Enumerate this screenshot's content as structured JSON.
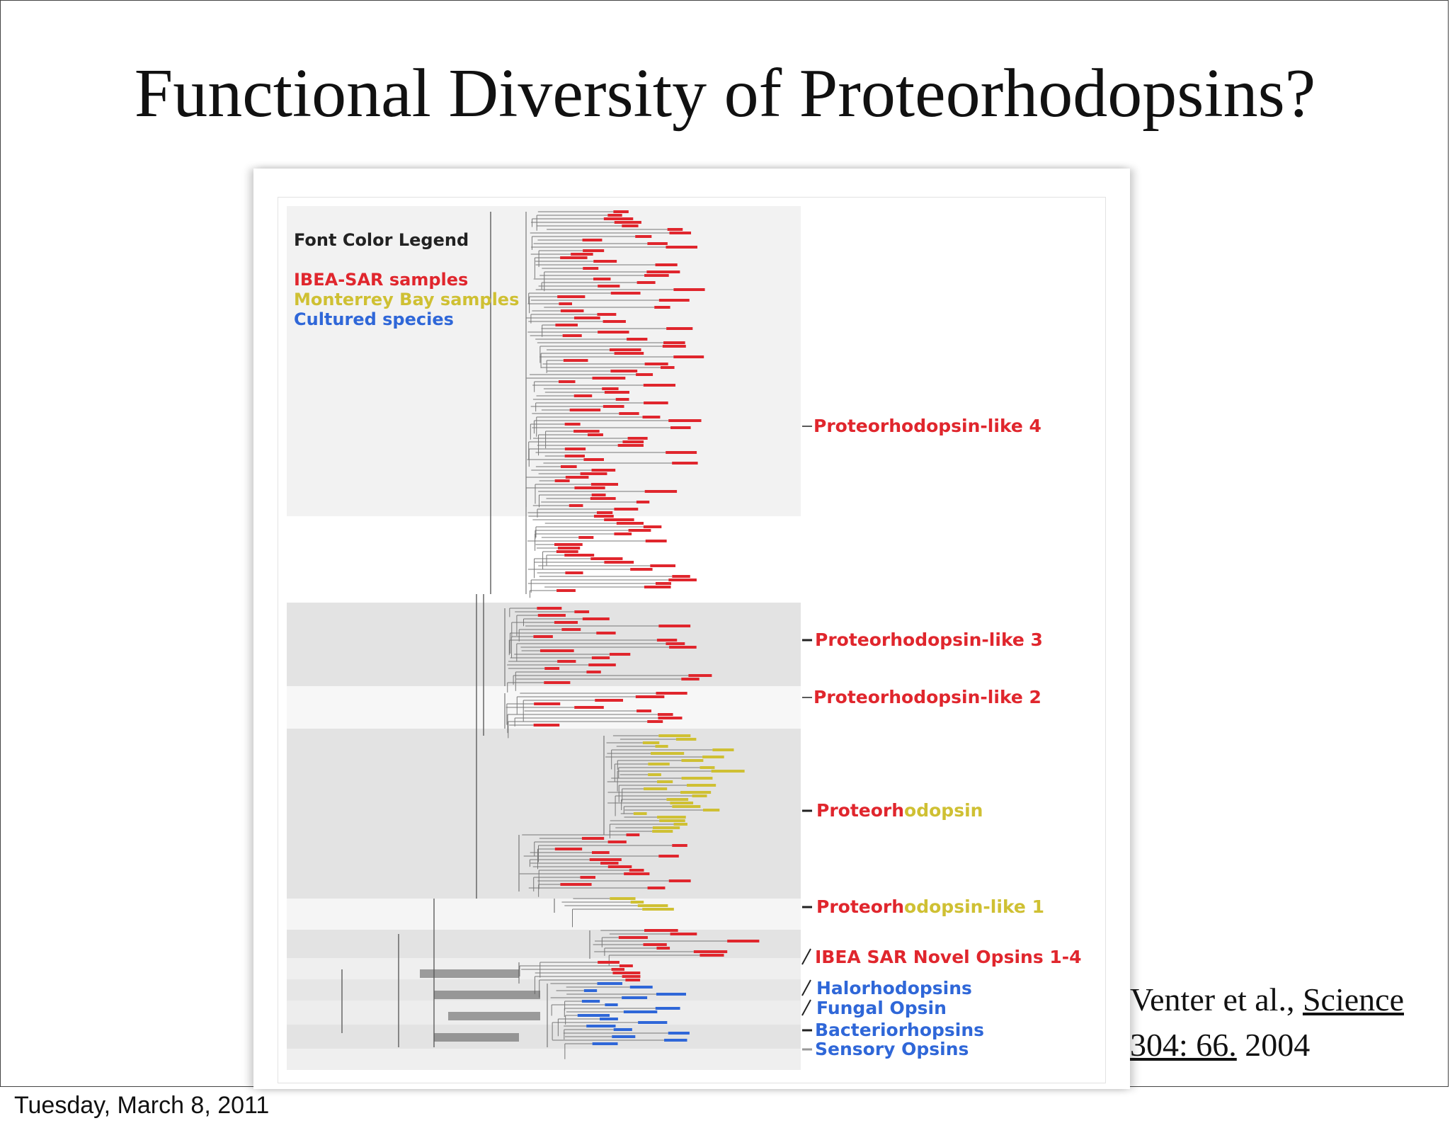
{
  "slide": {
    "title": "Functional Diversity of Proteorhodopsins?",
    "footer_date": "Tuesday, March 8, 2011"
  },
  "figure": {
    "legend": {
      "heading": "Font Color Legend",
      "items": [
        {
          "label": "IBEA-SAR samples",
          "color": "#e0262d"
        },
        {
          "label": "Monterrey Bay samples",
          "color": "#cfc033"
        },
        {
          "label": "Cultured species",
          "color": "#2f67d8"
        }
      ]
    },
    "clades": [
      {
        "parts": [
          {
            "text": "Proteorhodopsin-like 4",
            "color": "red"
          }
        ]
      },
      {
        "parts": [
          {
            "text": "Proteorhodopsin-like 3",
            "color": "red"
          }
        ]
      },
      {
        "parts": [
          {
            "text": "Proteorhodopsin-like 2",
            "color": "red"
          }
        ]
      },
      {
        "parts": [
          {
            "text": "Proteorh",
            "color": "red"
          },
          {
            "text": "odopsin",
            "color": "yellow"
          }
        ]
      },
      {
        "parts": [
          {
            "text": "Proteorh",
            "color": "red"
          },
          {
            "text": "odopsin-like 1",
            "color": "yellow"
          }
        ]
      },
      {
        "parts": [
          {
            "text": "IBEA SAR Novel Opsins 1-4",
            "color": "red"
          }
        ]
      },
      {
        "parts": [
          {
            "text": "Halorhodopsins",
            "color": "blue"
          }
        ]
      },
      {
        "parts": [
          {
            "text": "Fungal Opsin",
            "color": "blue"
          }
        ]
      },
      {
        "parts": [
          {
            "text": "Bacteriorhopsins",
            "color": "blue"
          }
        ]
      },
      {
        "parts": [
          {
            "text": "Sensory Opsins",
            "color": "blue"
          }
        ]
      }
    ],
    "colors": {
      "red": "#e0262d",
      "yellow": "#cfc033",
      "blue": "#2f67d8",
      "band": "#e4e4e4",
      "branch": "#777777"
    }
  },
  "citation": {
    "authors": "Venter et al., ",
    "journal": "Science",
    "volume": "304: 66.",
    "year": " 2004"
  }
}
